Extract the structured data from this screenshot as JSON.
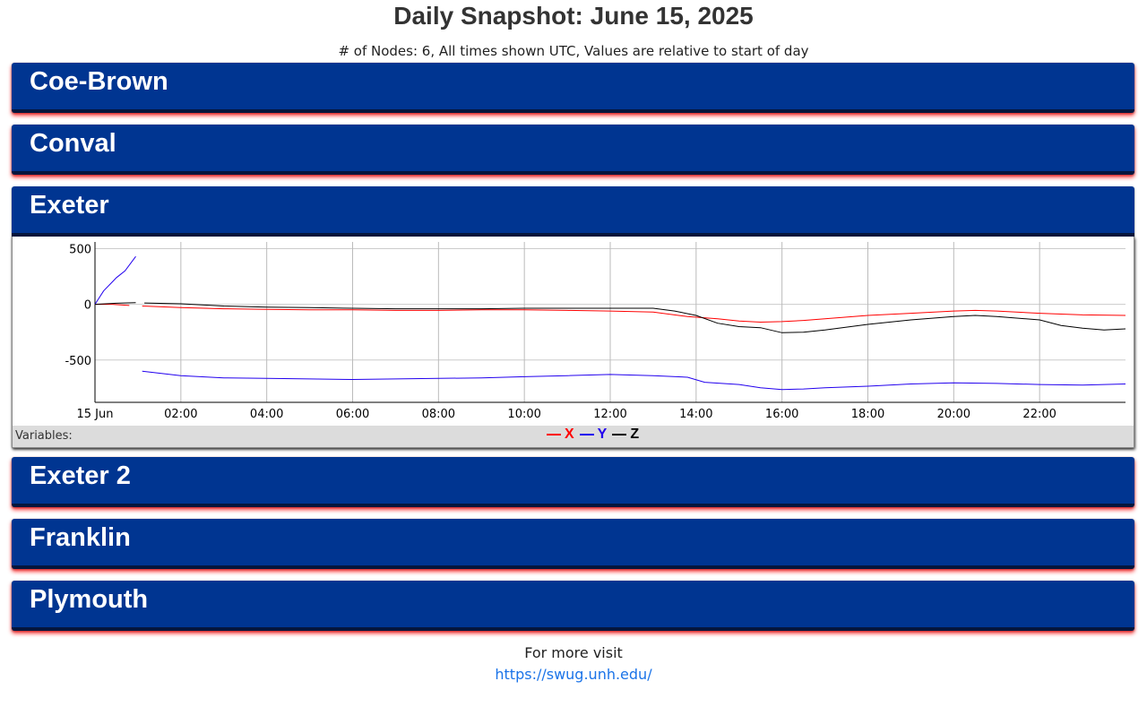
{
  "page": {
    "title": "Daily Snapshot: June 15, 2025",
    "subtitle": "# of Nodes: 6, All times shown UTC, Values are relative to start of day"
  },
  "nodes": [
    {
      "name": "Coe-Brown",
      "expanded": false
    },
    {
      "name": "Conval",
      "expanded": false
    },
    {
      "name": "Exeter",
      "expanded": true
    },
    {
      "name": "Exeter 2",
      "expanded": false
    },
    {
      "name": "Franklin",
      "expanded": false
    },
    {
      "name": "Plymouth",
      "expanded": false
    }
  ],
  "legend": {
    "label": "Variables:",
    "items": [
      {
        "name": "X",
        "color": "#ff0000"
      },
      {
        "name": "Y",
        "color": "#2200ee"
      },
      {
        "name": "Z",
        "color": "#000000"
      }
    ]
  },
  "colors": {
    "header_bg": "#003591",
    "header_border": "#05163d",
    "glow": "#ff0000",
    "link": "#1a73e8"
  },
  "chart_data": {
    "type": "line",
    "x_unit": "hour (UTC)",
    "xlim": [
      0,
      24
    ],
    "ylim": [
      -880,
      560
    ],
    "ytick_values": [
      500,
      0,
      -500
    ],
    "ytick_labels": [
      "500",
      "0",
      "-500"
    ],
    "xtick_values": [
      0,
      2,
      4,
      6,
      8,
      10,
      12,
      14,
      16,
      18,
      20,
      22
    ],
    "xtick_labels": [
      "15 Jun",
      "02:00",
      "04:00",
      "06:00",
      "08:00",
      "10:00",
      "12:00",
      "14:00",
      "16:00",
      "18:00",
      "20:00",
      "22:00"
    ],
    "grid": true,
    "series": [
      {
        "name": "X",
        "color": "#ff0000",
        "segments": [
          [
            [
              0,
              0
            ],
            [
              0.4,
              0
            ],
            [
              0.8,
              -10
            ]
          ],
          [
            [
              1.1,
              -15
            ],
            [
              2,
              -30
            ],
            [
              3,
              -40
            ],
            [
              4,
              -45
            ],
            [
              5,
              -50
            ],
            [
              6,
              -50
            ],
            [
              7,
              -55
            ],
            [
              8,
              -55
            ],
            [
              9,
              -50
            ],
            [
              10,
              -50
            ],
            [
              11,
              -55
            ],
            [
              12,
              -60
            ],
            [
              13,
              -70
            ],
            [
              13.8,
              -110
            ],
            [
              14.5,
              -130
            ],
            [
              15,
              -150
            ],
            [
              15.5,
              -160
            ],
            [
              16,
              -155
            ],
            [
              16.5,
              -145
            ],
            [
              17,
              -130
            ],
            [
              18,
              -100
            ],
            [
              19,
              -80
            ],
            [
              20,
              -60
            ],
            [
              20.5,
              -55
            ],
            [
              21,
              -60
            ],
            [
              22,
              -80
            ],
            [
              23,
              -95
            ],
            [
              24,
              -100
            ]
          ]
        ]
      },
      {
        "name": "Y",
        "color": "#2200ee",
        "segments": [
          [
            [
              0,
              0
            ],
            [
              0.2,
              120
            ],
            [
              0.5,
              240
            ],
            [
              0.7,
              300
            ],
            [
              0.95,
              430
            ]
          ],
          [
            [
              1.1,
              -600
            ],
            [
              2,
              -640
            ],
            [
              3,
              -660
            ],
            [
              4,
              -665
            ],
            [
              5,
              -670
            ],
            [
              6,
              -675
            ],
            [
              7,
              -670
            ],
            [
              8,
              -665
            ],
            [
              9,
              -660
            ],
            [
              10,
              -650
            ],
            [
              11,
              -640
            ],
            [
              12,
              -630
            ],
            [
              13,
              -640
            ],
            [
              13.8,
              -655
            ],
            [
              14.2,
              -700
            ],
            [
              15,
              -720
            ],
            [
              15.5,
              -750
            ],
            [
              16,
              -765
            ],
            [
              16.5,
              -760
            ],
            [
              17,
              -750
            ],
            [
              18,
              -735
            ],
            [
              19,
              -715
            ],
            [
              20,
              -705
            ],
            [
              21,
              -710
            ],
            [
              22,
              -720
            ],
            [
              23,
              -725
            ],
            [
              24,
              -715
            ]
          ]
        ]
      },
      {
        "name": "Z",
        "color": "#000000",
        "segments": [
          [
            [
              0,
              0
            ],
            [
              0.5,
              10
            ],
            [
              0.95,
              15
            ]
          ],
          [
            [
              1.15,
              12
            ],
            [
              2,
              5
            ],
            [
              3,
              -15
            ],
            [
              4,
              -25
            ],
            [
              5,
              -30
            ],
            [
              6,
              -35
            ],
            [
              7,
              -40
            ],
            [
              8,
              -40
            ],
            [
              9,
              -40
            ],
            [
              10,
              -35
            ],
            [
              11,
              -35
            ],
            [
              12,
              -35
            ],
            [
              13,
              -35
            ],
            [
              13.5,
              -60
            ],
            [
              14,
              -100
            ],
            [
              14.5,
              -170
            ],
            [
              15,
              -200
            ],
            [
              15.5,
              -210
            ],
            [
              16,
              -255
            ],
            [
              16.5,
              -250
            ],
            [
              17,
              -230
            ],
            [
              18,
              -180
            ],
            [
              19,
              -140
            ],
            [
              20,
              -110
            ],
            [
              20.5,
              -100
            ],
            [
              21,
              -110
            ],
            [
              22,
              -140
            ],
            [
              22.5,
              -190
            ],
            [
              23,
              -215
            ],
            [
              23.5,
              -230
            ],
            [
              24,
              -220
            ]
          ]
        ]
      }
    ]
  },
  "footer": {
    "text": "For more visit",
    "link_text": "https://swug.unh.edu/"
  }
}
